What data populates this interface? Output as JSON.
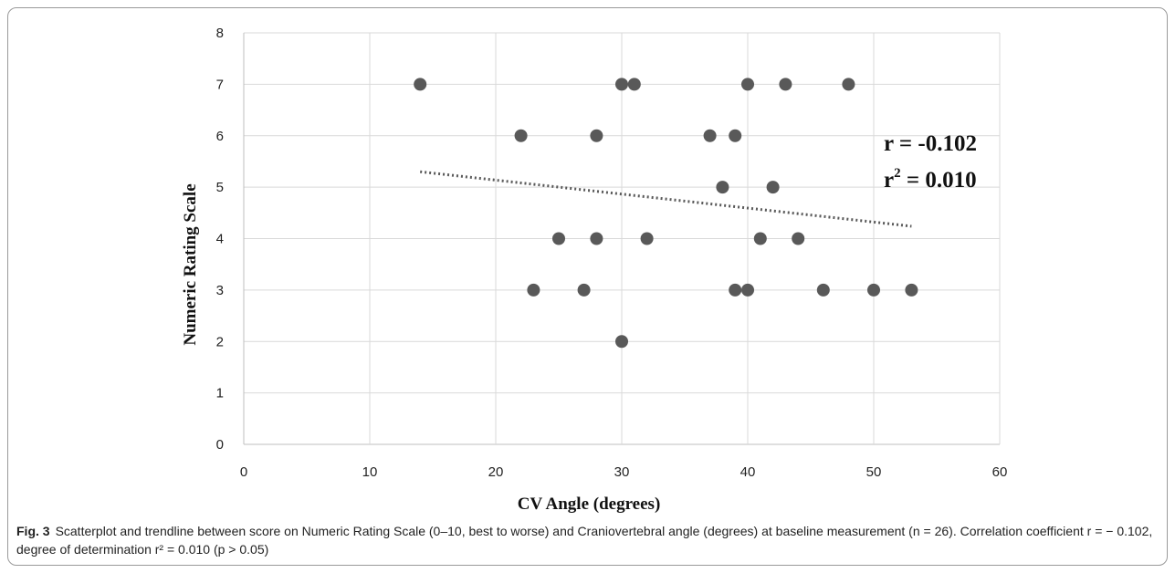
{
  "chart_data": {
    "type": "scatter",
    "xlabel": "CV Angle (degrees)",
    "ylabel": "Numeric Rating Scale",
    "xlim": [
      0,
      60
    ],
    "ylim": [
      0,
      8
    ],
    "xticks": [
      0,
      10,
      20,
      30,
      40,
      50,
      60
    ],
    "yticks": [
      0,
      1,
      2,
      3,
      4,
      5,
      6,
      7,
      8
    ],
    "grid": "vertical and horizontal",
    "points": [
      {
        "x": 14,
        "y": 7
      },
      {
        "x": 30,
        "y": 7
      },
      {
        "x": 31,
        "y": 7
      },
      {
        "x": 40,
        "y": 7
      },
      {
        "x": 43,
        "y": 7
      },
      {
        "x": 48,
        "y": 7
      },
      {
        "x": 22,
        "y": 6
      },
      {
        "x": 28,
        "y": 6
      },
      {
        "x": 37,
        "y": 6
      },
      {
        "x": 39,
        "y": 6
      },
      {
        "x": 38,
        "y": 5
      },
      {
        "x": 42,
        "y": 5
      },
      {
        "x": 25,
        "y": 4
      },
      {
        "x": 28,
        "y": 4
      },
      {
        "x": 32,
        "y": 4
      },
      {
        "x": 41,
        "y": 4
      },
      {
        "x": 44,
        "y": 4
      },
      {
        "x": 23,
        "y": 3
      },
      {
        "x": 27,
        "y": 3
      },
      {
        "x": 39,
        "y": 3
      },
      {
        "x": 40,
        "y": 3
      },
      {
        "x": 46,
        "y": 3
      },
      {
        "x": 50,
        "y": 3
      },
      {
        "x": 53,
        "y": 3
      },
      {
        "x": 30,
        "y": 2
      }
    ],
    "trendline": {
      "x": [
        14,
        53
      ],
      "y": [
        5.3,
        4.24
      ],
      "style": "dotted"
    },
    "annotations": {
      "r_text": "r = -0.102",
      "r2_prefix": "r",
      "r2_sup": "2",
      "r2_value": " = 0.010"
    },
    "colors": {
      "points": "#595959",
      "trendline": "#595959",
      "grid": "#d9d9d9",
      "axis": "#bfbfbf"
    }
  },
  "caption": {
    "label": "Fig. 3",
    "text": "Scatterplot and trendline between score on Numeric Rating Scale (0–10, best to worse) and Craniovertebral angle (degrees) at baseline measurement (n = 26). Correlation coefficient r = − 0.102, degree of determination r² = 0.010 (p > 0.05)"
  }
}
